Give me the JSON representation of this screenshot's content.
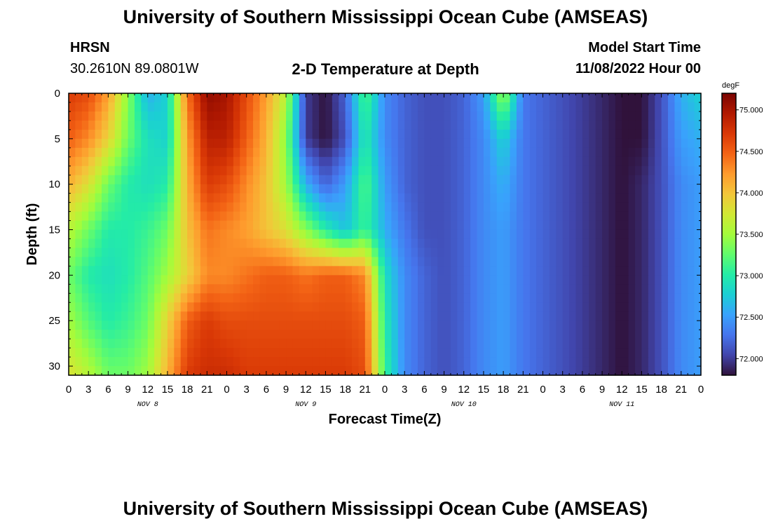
{
  "header": {
    "title": "University of Southern Mississippi Ocean Cube (AMSEAS)",
    "station": "HRSN",
    "coords": "30.2610N  89.0801W",
    "subtitle": "2-D Temperature at Depth",
    "model_label": "Model Start Time",
    "model_value": "11/08/2022 Hour 00"
  },
  "footer": {
    "title": "University of Southern Mississippi Ocean Cube (AMSEAS)"
  },
  "chart_data": {
    "type": "heatmap",
    "xlabel": "Forecast Time(Z)",
    "ylabel": "Depth (ft)",
    "x_tick_labels": [
      "0",
      "3",
      "6",
      "9",
      "12",
      "15",
      "18",
      "21",
      "0",
      "3",
      "6",
      "9",
      "12",
      "15",
      "18",
      "21",
      "0",
      "3",
      "6",
      "9",
      "12",
      "15",
      "18",
      "21",
      "0",
      "3",
      "6",
      "9",
      "12",
      "15",
      "18",
      "21",
      "0"
    ],
    "x_range_hours": [
      0,
      96
    ],
    "day_labels": [
      {
        "label": "NOV 8",
        "hour": 12
      },
      {
        "label": "NOV 9",
        "hour": 36
      },
      {
        "label": "NOV 10",
        "hour": 60
      },
      {
        "label": "NOV 11",
        "hour": 84
      }
    ],
    "y_ticks": [
      0,
      5,
      10,
      15,
      20,
      25,
      30
    ],
    "y_range": [
      0,
      31
    ],
    "y_inverted": true,
    "colorbar": {
      "unit": "degF",
      "range": [
        71.8,
        75.2
      ],
      "ticks": [
        "75.000",
        "74.500",
        "74.000",
        "73.500",
        "73.000",
        "72.500",
        "72.000"
      ],
      "tick_values": [
        75.0,
        74.5,
        74.0,
        73.5,
        73.0,
        72.5,
        72.0
      ],
      "colors": [
        "#30123b",
        "#4145ab",
        "#4675ed",
        "#39a2fc",
        "#1bcfd4",
        "#24eca6",
        "#61fc6c",
        "#a4fc3b",
        "#d1e834",
        "#f3c63a",
        "#fe9b2d",
        "#f36315",
        "#d93806",
        "#b11901",
        "#7a0402"
      ]
    },
    "hours": [
      0,
      3,
      6,
      9,
      12,
      15,
      18,
      21,
      24,
      27,
      30,
      33,
      36,
      39,
      42,
      45,
      48,
      51,
      54,
      57,
      60,
      63,
      66,
      69,
      72,
      75,
      78,
      81,
      84,
      87,
      90,
      93,
      96
    ],
    "depths": [
      0,
      5,
      10,
      15,
      20,
      25,
      31
    ],
    "values": [
      [
        74.7,
        74.6,
        74.2,
        73.4,
        72.6,
        72.8,
        74.4,
        75.1,
        75.0,
        74.6,
        74.2,
        73.6,
        72.0,
        71.8,
        72.2,
        73.2,
        72.4,
        72.2,
        72.1,
        72.1,
        72.2,
        72.5,
        73.5,
        72.3,
        72.2,
        72.1,
        72.0,
        71.9,
        71.8,
        71.8,
        72.1,
        72.6,
        72.8
      ],
      [
        74.5,
        74.3,
        73.9,
        73.3,
        72.9,
        72.8,
        74.2,
        74.9,
        74.9,
        74.5,
        74.1,
        73.4,
        72.0,
        71.8,
        72.1,
        73.0,
        72.4,
        72.2,
        72.1,
        72.1,
        72.2,
        72.4,
        72.8,
        72.3,
        72.2,
        72.1,
        72.0,
        71.9,
        71.8,
        71.8,
        72.1,
        72.5,
        72.6
      ],
      [
        74.1,
        73.8,
        73.3,
        73.0,
        72.9,
        73.0,
        74.1,
        74.7,
        74.6,
        74.3,
        74.0,
        73.5,
        72.6,
        72.2,
        72.5,
        73.2,
        72.5,
        72.2,
        72.1,
        72.1,
        72.2,
        72.4,
        72.6,
        72.3,
        72.2,
        72.1,
        72.0,
        71.9,
        71.8,
        71.9,
        72.1,
        72.4,
        72.5
      ],
      [
        73.6,
        73.3,
        73.0,
        73.0,
        73.1,
        73.3,
        74.0,
        74.4,
        74.3,
        74.2,
        74.0,
        73.8,
        73.4,
        73.0,
        72.7,
        73.1,
        72.6,
        72.3,
        72.1,
        72.1,
        72.2,
        72.4,
        72.5,
        72.3,
        72.2,
        72.1,
        72.0,
        71.9,
        71.8,
        71.9,
        72.1,
        72.4,
        72.5
      ],
      [
        73.3,
        73.0,
        72.9,
        73.0,
        73.2,
        73.5,
        73.9,
        74.3,
        74.3,
        74.4,
        74.5,
        74.5,
        74.4,
        74.5,
        74.5,
        74.3,
        72.9,
        72.4,
        72.2,
        72.1,
        72.2,
        72.4,
        72.5,
        72.3,
        72.2,
        72.1,
        72.0,
        71.9,
        71.8,
        71.9,
        72.1,
        72.4,
        72.5
      ],
      [
        73.5,
        73.2,
        73.0,
        73.1,
        73.3,
        73.9,
        74.5,
        74.7,
        74.6,
        74.6,
        74.6,
        74.6,
        74.6,
        74.6,
        74.6,
        74.5,
        73.0,
        72.4,
        72.2,
        72.1,
        72.2,
        72.4,
        72.5,
        72.3,
        72.2,
        72.1,
        72.0,
        71.9,
        71.8,
        71.9,
        72.1,
        72.4,
        72.5
      ],
      [
        73.8,
        73.6,
        73.3,
        73.3,
        73.5,
        74.1,
        74.7,
        74.8,
        74.8,
        74.7,
        74.7,
        74.7,
        74.7,
        74.7,
        74.7,
        74.6,
        73.1,
        72.4,
        72.2,
        72.1,
        72.2,
        72.4,
        72.5,
        72.3,
        72.2,
        72.1,
        72.0,
        71.9,
        71.8,
        71.9,
        72.1,
        72.4,
        72.5
      ]
    ]
  }
}
